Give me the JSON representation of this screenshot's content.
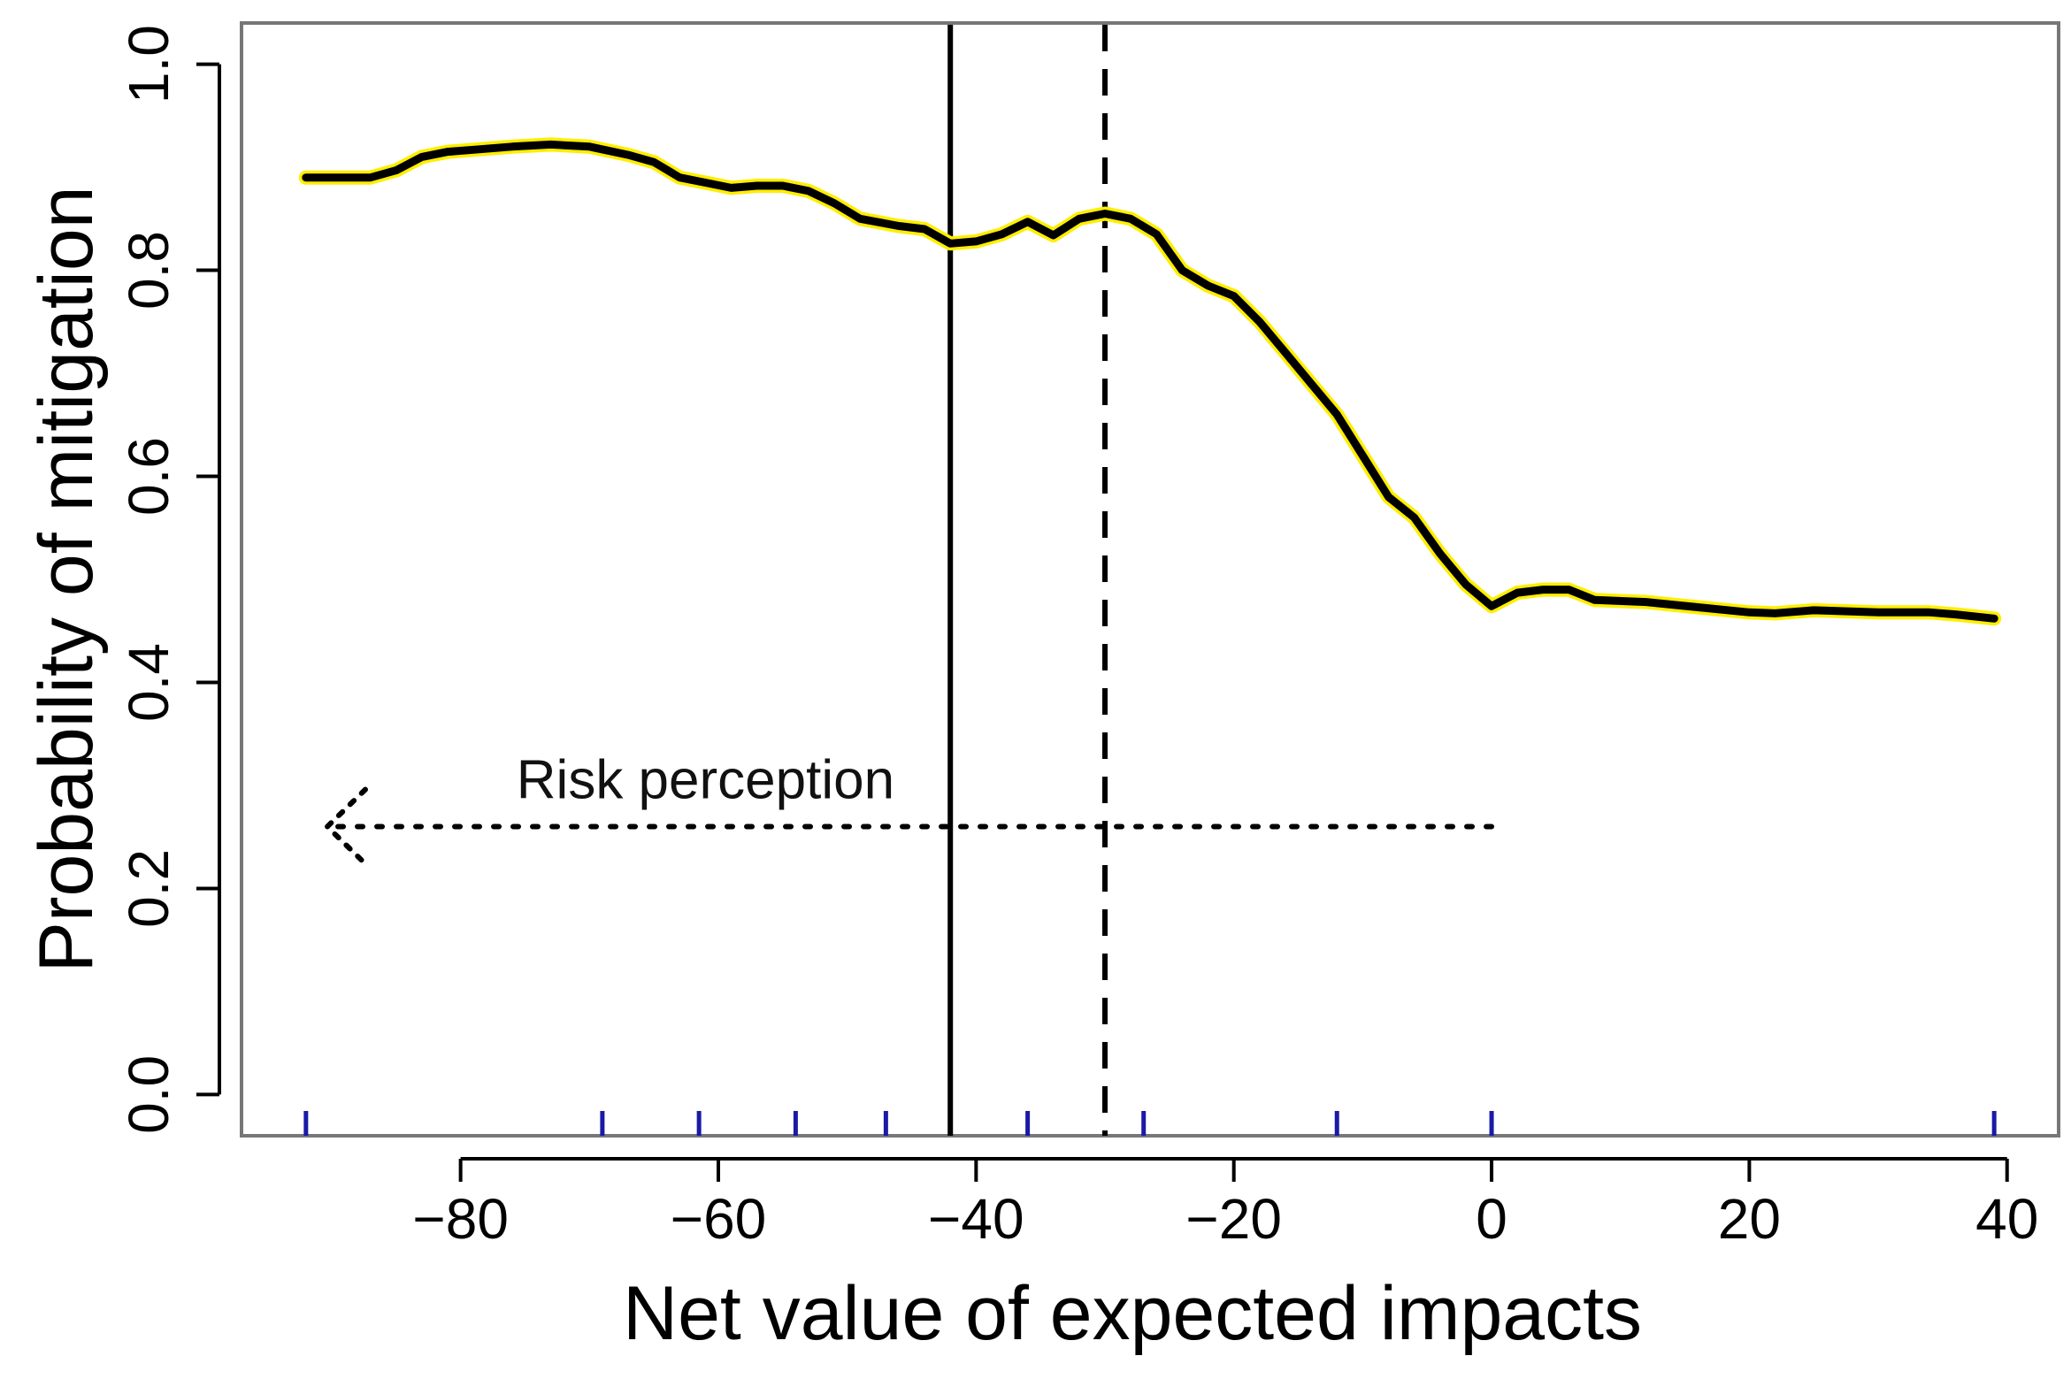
{
  "chart_data": {
    "type": "line",
    "title": "",
    "xlabel": "Net value of expected impacts",
    "ylabel": "Probability of mitigation",
    "xlim": [
      -97,
      44
    ],
    "ylim": [
      -0.04,
      1.04
    ],
    "xticks": [
      -80,
      -60,
      -40,
      -20,
      0,
      20,
      40
    ],
    "yticks": [
      0.0,
      0.2,
      0.4,
      0.6,
      0.8,
      1.0
    ],
    "xtick_labels": [
      "−80",
      "−60",
      "−40",
      "−20",
      "0",
      "20",
      "40"
    ],
    "ytick_labels": [
      "0.0",
      "0.2",
      "0.4",
      "0.6",
      "0.8",
      "1.0"
    ],
    "series": [
      {
        "name": "Probability of mitigation",
        "color": "#000000",
        "halo_color": "#ffee00",
        "x": [
          -92,
          -89,
          -87,
          -85,
          -83,
          -81,
          -79,
          -76,
          -73,
          -70,
          -67,
          -65,
          -63,
          -61,
          -59,
          -57,
          -55,
          -53,
          -51,
          -49,
          -46,
          -44,
          -42,
          -40,
          -38,
          -36,
          -34,
          -32,
          -30,
          -28,
          -26,
          -24,
          -22,
          -20,
          -18,
          -16,
          -14,
          -12,
          -10,
          -8,
          -6,
          -4,
          -2,
          0,
          2,
          4,
          6,
          8,
          12,
          16,
          20,
          22,
          25,
          30,
          34,
          36,
          39
        ],
        "y": [
          0.89,
          0.89,
          0.89,
          0.897,
          0.91,
          0.915,
          0.917,
          0.92,
          0.922,
          0.92,
          0.912,
          0.905,
          0.89,
          0.885,
          0.88,
          0.882,
          0.882,
          0.877,
          0.865,
          0.85,
          0.843,
          0.84,
          0.826,
          0.828,
          0.835,
          0.847,
          0.834,
          0.85,
          0.855,
          0.85,
          0.835,
          0.8,
          0.785,
          0.775,
          0.75,
          0.72,
          0.69,
          0.66,
          0.62,
          0.58,
          0.56,
          0.525,
          0.495,
          0.474,
          0.487,
          0.49,
          0.49,
          0.48,
          0.478,
          0.473,
          0.468,
          0.467,
          0.47,
          0.468,
          0.468,
          0.466,
          0.462
        ]
      }
    ],
    "vertical_lines": [
      {
        "name": "solid",
        "x": -42,
        "style": "solid"
      },
      {
        "name": "dashed",
        "x": -30,
        "style": "dashed"
      }
    ],
    "rug": [
      -92,
      -69,
      -61.5,
      -54,
      -47,
      -36,
      -27,
      -12,
      0,
      39
    ],
    "annotations": [
      {
        "text": "Risk perception",
        "arrow_from_x": 0,
        "arrow_to_x": -90,
        "y": 0.26
      }
    ]
  }
}
